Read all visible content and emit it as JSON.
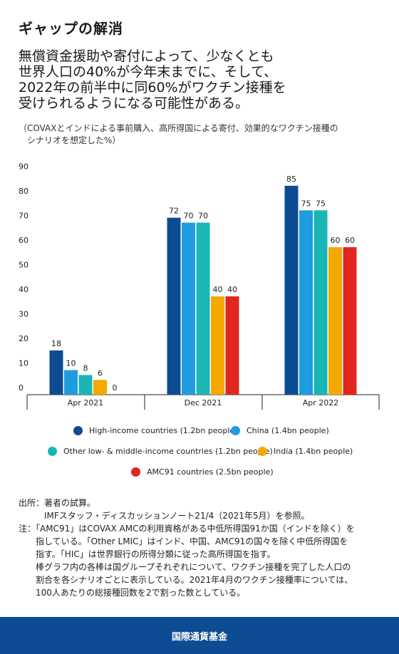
{
  "title": "ギャップの解消",
  "headline": [
    "無償資金援助や寄付によって、少なくとも",
    "世界人口の40%が今年末までに、そして、",
    "2022年の前半中に同60%がワクチン接種を",
    "受けられるようになる可能性がある。"
  ],
  "subnote": [
    "（COVAXとインドによる事前購入、高所得国による寄付、効果的なワクチン接種の",
    "　シナリオを想定した%）"
  ],
  "chart_data": {
    "type": "bar",
    "categories": [
      "Apr 2021",
      "Dec 2021",
      "Apr 2022"
    ],
    "y_ticks": [
      "0",
      "10",
      "20",
      "30",
      "40",
      "50",
      "60",
      "70",
      "80",
      "90"
    ],
    "ylim": [
      0,
      90
    ],
    "grid": false,
    "legend_position": "bottom",
    "series": [
      {
        "name": "High-income countries (1.2bn people)",
        "color": "#0d4c92",
        "values": [
          18,
          72,
          85
        ]
      },
      {
        "name": "China (1.4bn people)",
        "color": "#1f9ce0",
        "values": [
          10,
          70,
          75
        ]
      },
      {
        "name": "Other low- & middle-income countries (1.2bn people)",
        "color": "#1ab6b6",
        "values": [
          8,
          70,
          75
        ]
      },
      {
        "name": "India (1.4bn people)",
        "color": "#f5a800",
        "values": [
          6,
          40,
          60
        ]
      },
      {
        "name": "AMC91 countries (2.5bn people)",
        "color": "#e0261f",
        "values": [
          0,
          40,
          60
        ]
      }
    ]
  },
  "notes": [
    "出所：著者の試算。",
    "　　　IMFスタッフ・ディスカッションノート21/4（2021年5月）を参照。",
    "注：「AMC91」はCOVAX AMCの利用資格がある中低所得国91か国（インドを除く）を",
    "　　指している。「Other LMIC」はインド、中国、AMC91の国々を除く中低所得国を",
    "　　指す。「HIC」は世界銀行の所得分類に従った高所得国を指す。",
    "　　棒グラフ内の各棒は国グループそれぞれについて、ワクチン接種を完了した人口の",
    "　　割合を各シナリオごとに表示している。2021年4月のワクチン接種率については、",
    "　　100人あたりの総接種回数を2で割った数としている。"
  ],
  "footer": "国際通貨基金"
}
